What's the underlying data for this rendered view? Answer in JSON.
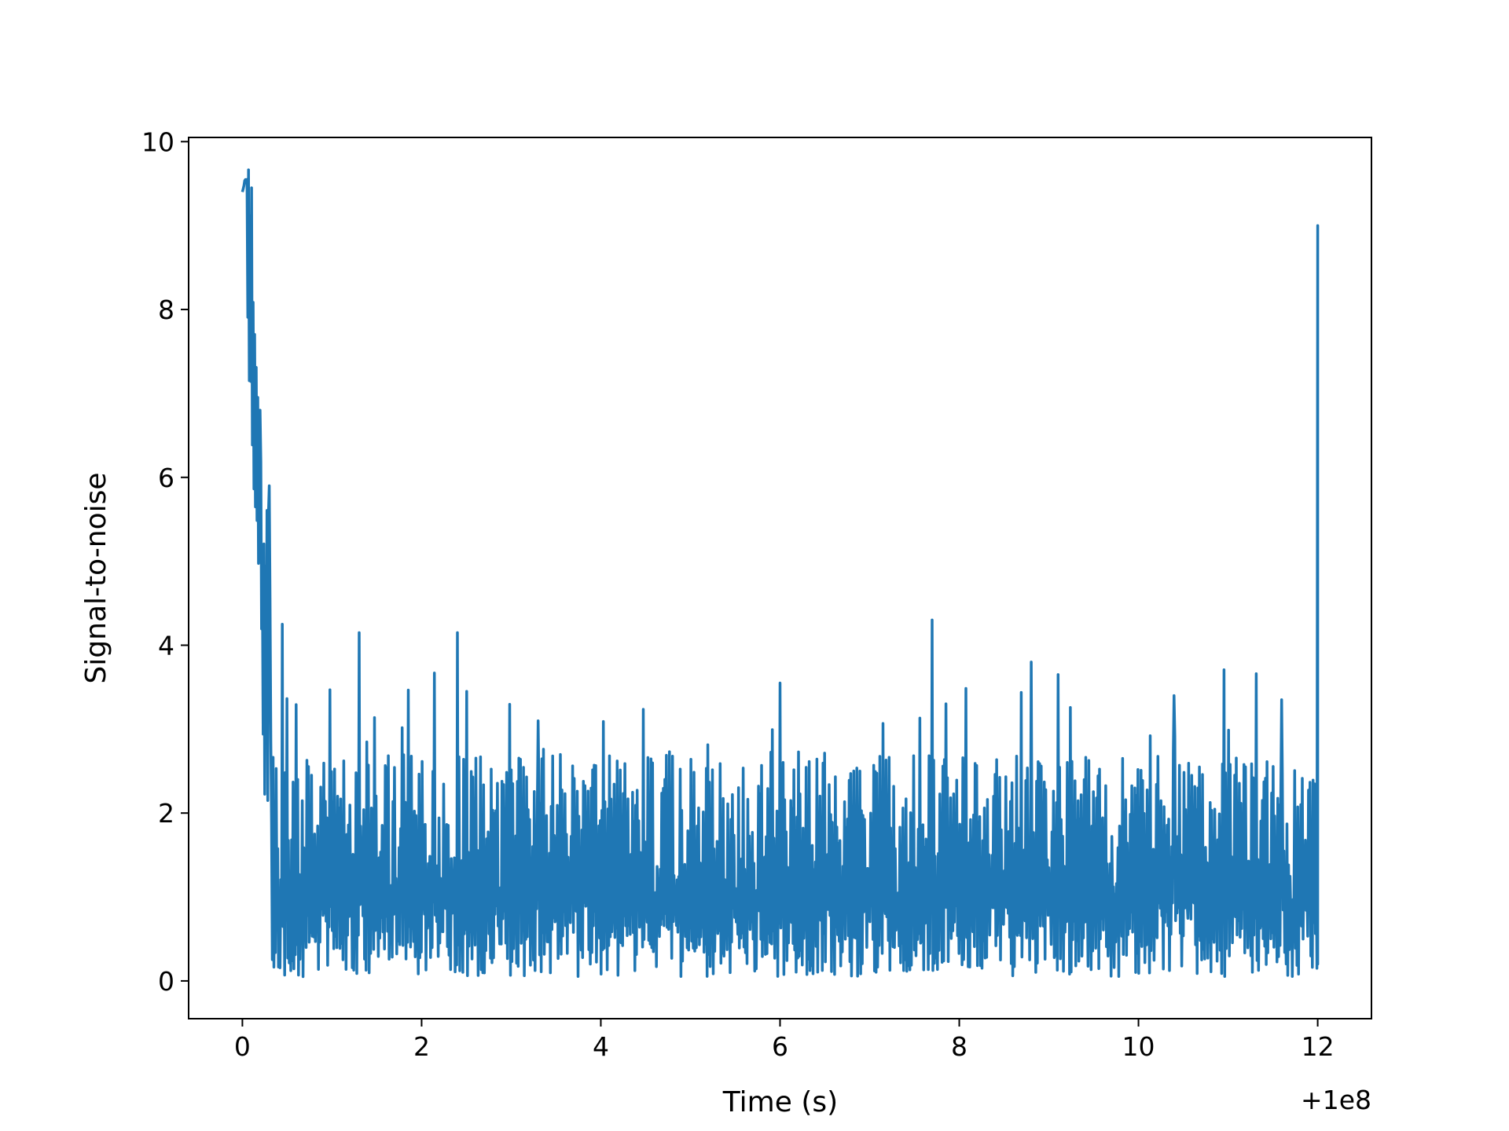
{
  "chart_data": {
    "type": "line",
    "title": "",
    "xlabel": "Time (s)",
    "ylabel": "Signal-to-noise",
    "x_offset_label": "+1e8",
    "xlim": [
      -0.6,
      12.6
    ],
    "ylim": [
      -0.45,
      10.05
    ],
    "grid": false,
    "legend": "none",
    "x_ticks": [
      0,
      2,
      4,
      6,
      8,
      10,
      12
    ],
    "y_ticks": [
      0,
      2,
      4,
      6,
      8,
      10
    ],
    "x_tick_labels": [
      "0",
      "2",
      "4",
      "6",
      "8",
      "10",
      "12"
    ],
    "y_tick_labels": [
      "0",
      "2",
      "4",
      "6",
      "8",
      "10"
    ],
    "series": [
      {
        "color": "#1f77b4",
        "x_start": 0,
        "x_end": 12,
        "samples": 1400,
        "initial_peak": 9.55,
        "initial_decay_seconds": 0.2,
        "noise_floor_peak_mean": 2.3,
        "noise_floor_min": 0.05,
        "final_peak": {
          "x": 12.0,
          "y": 9.0
        },
        "notable_peaks": [
          {
            "x": 0.05,
            "y": 9.55
          },
          {
            "x": 0.1,
            "y": 9.45
          },
          {
            "x": 0.2,
            "y": 6.8
          },
          {
            "x": 0.3,
            "y": 5.9
          },
          {
            "x": 0.45,
            "y": 4.25
          },
          {
            "x": 1.3,
            "y": 4.15
          },
          {
            "x": 2.4,
            "y": 4.15
          },
          {
            "x": 2.5,
            "y": 3.45
          },
          {
            "x": 3.3,
            "y": 3.1
          },
          {
            "x": 6.0,
            "y": 3.55
          },
          {
            "x": 7.7,
            "y": 4.3
          },
          {
            "x": 8.8,
            "y": 3.8
          },
          {
            "x": 9.1,
            "y": 3.65
          },
          {
            "x": 10.4,
            "y": 3.4
          },
          {
            "x": 11.6,
            "y": 3.35
          },
          {
            "x": 12.0,
            "y": 9.0
          }
        ]
      }
    ]
  }
}
